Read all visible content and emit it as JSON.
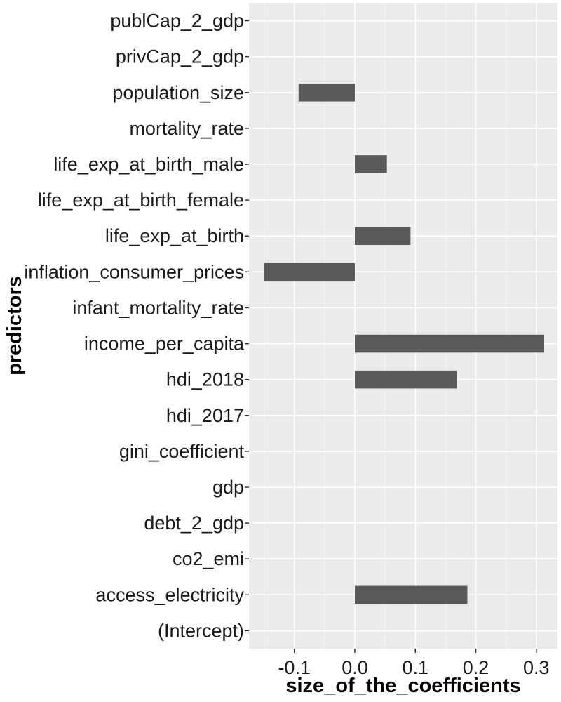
{
  "chart_data": {
    "type": "bar",
    "orientation": "horizontal",
    "xlabel": "size_of_the_coefficients",
    "ylabel": "predictors",
    "xlim": [
      -0.175,
      0.335
    ],
    "xticks": [
      -0.1,
      0.0,
      0.1,
      0.2,
      0.3
    ],
    "xtick_labels": [
      "-0.1",
      "0.0",
      "0.1",
      "0.2",
      "0.3"
    ],
    "categories": [
      "(Intercept)",
      "access_electricity",
      "co2_emi",
      "debt_2_gdp",
      "gdp",
      "gini_coefficient",
      "hdi_2017",
      "hdi_2018",
      "income_per_capita",
      "infant_mortality_rate",
      "inflation_consumer_prices",
      "life_exp_at_birth",
      "life_exp_at_birth_female",
      "life_exp_at_birth_male",
      "mortality_rate",
      "population_size",
      "privCap_2_gdp",
      "publCap_2_gdp"
    ],
    "values": [
      0,
      0.186,
      0,
      0,
      0,
      0,
      0,
      0.169,
      0.313,
      0,
      -0.15,
      0.092,
      0,
      0.053,
      0,
      -0.093,
      0,
      0
    ],
    "bar_color": "#595959",
    "panel_background": "#ebebeb",
    "grid": true,
    "legend": "none"
  }
}
